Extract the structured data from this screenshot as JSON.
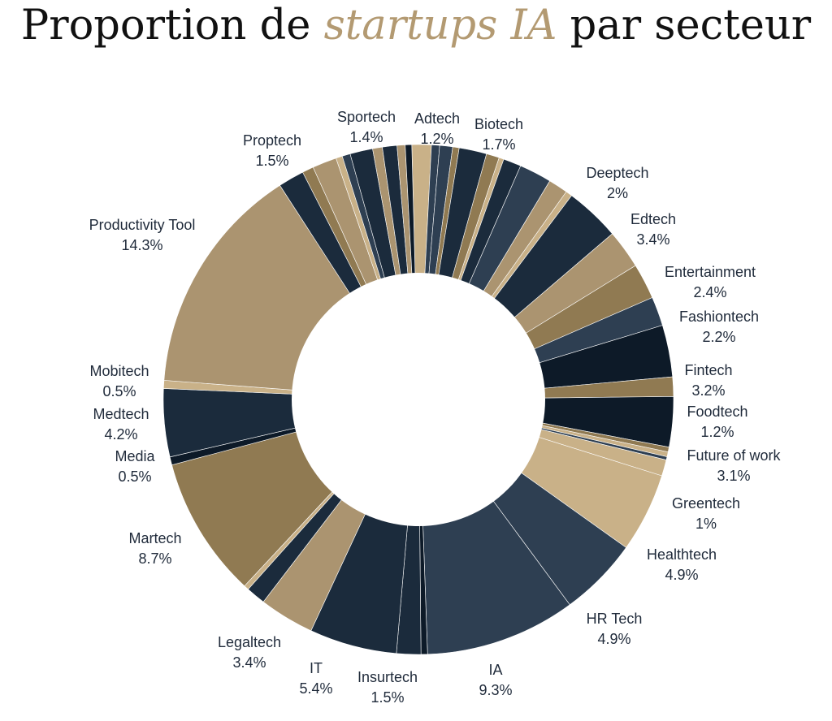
{
  "title": {
    "prefix": "Proportion de ",
    "accent": "startups IA",
    "suffix": " par secteur"
  },
  "colors": {
    "navy": "#1b2b3c",
    "slate": "#2e3f52",
    "ink": "#0d1a28",
    "brown": "#907a52",
    "tan": "#ab9470",
    "sand": "#c9b188",
    "accent": "#b39a72"
  },
  "chart_data": {
    "type": "pie",
    "style": "donut",
    "slices": [
      {
        "label": "Adtech",
        "value": 1.2,
        "pct": "1.2%",
        "color": "#c9b188",
        "labeled": true
      },
      {
        "label": "",
        "value": 0.5,
        "color": "#2e3f52",
        "labeled": false
      },
      {
        "label": "",
        "value": 0.8,
        "color": "#2e3f52",
        "labeled": false
      },
      {
        "label": "",
        "value": 0.4,
        "color": "#907a52",
        "labeled": false
      },
      {
        "label": "Biotech",
        "value": 1.7,
        "pct": "1.7%",
        "color": "#1b2b3c",
        "labeled": true
      },
      {
        "label": "",
        "value": 0.8,
        "color": "#907a52",
        "labeled": false
      },
      {
        "label": "",
        "value": 0.3,
        "color": "#c9b188",
        "labeled": false
      },
      {
        "label": "",
        "value": 1.1,
        "color": "#1b2b3c",
        "labeled": false
      },
      {
        "label": "Deeptech",
        "value": 2.0,
        "pct": "2%",
        "color": "#2e3f52",
        "labeled": true
      },
      {
        "label": "",
        "value": 1.2,
        "color": "#ab9470",
        "labeled": false
      },
      {
        "label": "",
        "value": 0.4,
        "color": "#c9b188",
        "labeled": false
      },
      {
        "label": "Edtech",
        "value": 3.4,
        "pct": "3.4%",
        "color": "#1b2b3c",
        "labeled": true
      },
      {
        "label": "Entertainment",
        "value": 2.4,
        "pct": "2.4%",
        "color": "#ab9470",
        "labeled": true
      },
      {
        "label": "Fashiontech",
        "value": 2.2,
        "pct": "2.2%",
        "color": "#907a52",
        "labeled": true
      },
      {
        "label": "",
        "value": 1.8,
        "color": "#2e3f52",
        "labeled": false
      },
      {
        "label": "Fintech",
        "value": 3.2,
        "pct": "3.2%",
        "color": "#0d1a28",
        "labeled": true
      },
      {
        "label": "Foodtech",
        "value": 1.2,
        "pct": "1.2%",
        "color": "#907a52",
        "labeled": true
      },
      {
        "label": "Future of work",
        "value": 3.1,
        "pct": "3.1%",
        "color": "#0d1a28",
        "labeled": true
      },
      {
        "label": "",
        "value": 0.3,
        "color": "#907a52",
        "labeled": false
      },
      {
        "label": "",
        "value": 0.3,
        "color": "#c9b188",
        "labeled": false
      },
      {
        "label": "",
        "value": 0.2,
        "color": "#2e3f52",
        "labeled": false
      },
      {
        "label": "Greentech",
        "value": 1.0,
        "pct": "1%",
        "color": "#c9b188",
        "labeled": true
      },
      {
        "label": "Healthtech",
        "value": 4.9,
        "pct": "4.9%",
        "color": "#c9b188",
        "labeled": true
      },
      {
        "label": "HR Tech",
        "value": 4.9,
        "pct": "4.9%",
        "color": "#2e3f52",
        "labeled": true
      },
      {
        "label": "IA",
        "value": 9.3,
        "pct": "9.3%",
        "color": "#2e3f52",
        "labeled": true
      },
      {
        "label": "",
        "value": 0.4,
        "color": "#0d1a28",
        "labeled": false
      },
      {
        "label": "Insurtech",
        "value": 1.5,
        "pct": "1.5%",
        "color": "#1b2b3c",
        "labeled": true
      },
      {
        "label": "IT",
        "value": 5.4,
        "pct": "5.4%",
        "color": "#1b2b3c",
        "labeled": true
      },
      {
        "label": "Legaltech",
        "value": 3.4,
        "pct": "3.4%",
        "color": "#ab9470",
        "labeled": true
      },
      {
        "label": "",
        "value": 1.2,
        "color": "#1b2b3c",
        "labeled": false
      },
      {
        "label": "",
        "value": 0.3,
        "color": "#c9b188",
        "labeled": false
      },
      {
        "label": "Martech",
        "value": 8.7,
        "pct": "8.7%",
        "color": "#907a52",
        "labeled": true
      },
      {
        "label": "Media",
        "value": 0.5,
        "pct": "0.5%",
        "color": "#0d1a28",
        "labeled": true
      },
      {
        "label": "Medtech",
        "value": 4.2,
        "pct": "4.2%",
        "color": "#1b2b3c",
        "labeled": true
      },
      {
        "label": "Mobitech",
        "value": 0.5,
        "pct": "0.5%",
        "color": "#c9b188",
        "labeled": true
      },
      {
        "label": "Productivity Tool",
        "value": 14.3,
        "pct": "14.3%",
        "color": "#ab9470",
        "labeled": true
      },
      {
        "label": "",
        "value": 1.6,
        "color": "#1b2b3c",
        "labeled": false
      },
      {
        "label": "",
        "value": 0.7,
        "color": "#907a52",
        "labeled": false
      },
      {
        "label": "Proptech",
        "value": 1.5,
        "pct": "1.5%",
        "color": "#ab9470",
        "labeled": true
      },
      {
        "label": "",
        "value": 0.4,
        "color": "#c9b188",
        "labeled": false
      },
      {
        "label": "",
        "value": 0.5,
        "color": "#2e3f52",
        "labeled": false
      },
      {
        "label": "Sportech",
        "value": 1.4,
        "pct": "1.4%",
        "color": "#1b2b3c",
        "labeled": true
      },
      {
        "label": "",
        "value": 0.6,
        "color": "#ab9470",
        "labeled": false
      },
      {
        "label": "",
        "value": 0.9,
        "color": "#1b2b3c",
        "labeled": false
      },
      {
        "label": "",
        "value": 0.5,
        "color": "#ab9470",
        "labeled": false
      },
      {
        "label": "",
        "value": 0.4,
        "color": "#0d1a28",
        "labeled": false
      }
    ]
  }
}
